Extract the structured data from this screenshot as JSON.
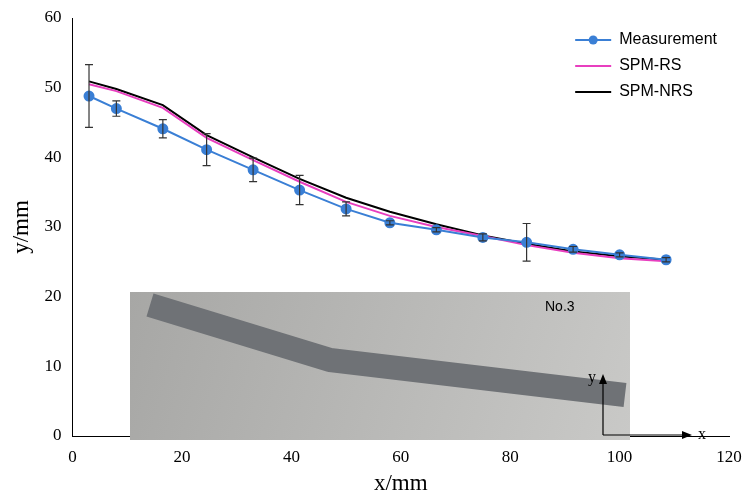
{
  "chart_data": {
    "type": "line",
    "x_label": "x/mm",
    "y_label": "y/mm",
    "xlim": [
      0,
      120
    ],
    "xticks": [
      0,
      20,
      40,
      60,
      80,
      100,
      120
    ],
    "ylim": [
      0,
      60
    ],
    "yticks": [
      0,
      10,
      20,
      30,
      40,
      50,
      60
    ],
    "grid": false,
    "legend": "upper right",
    "x": [
      3,
      8,
      16.5,
      24.5,
      33,
      41.5,
      50,
      58,
      66.5,
      75,
      83,
      91.5,
      100,
      108.5
    ],
    "series": [
      {
        "name": "Measurement",
        "color": "#3a7fd5",
        "marker": "circle",
        "line_style": "solid",
        "values": [
          48.8,
          47.0,
          44.1,
          41.1,
          38.2,
          35.3,
          32.6,
          30.6,
          29.6,
          28.5,
          27.8,
          26.8,
          26.0,
          25.3
        ],
        "errors": [
          4.5,
          1.1,
          1.3,
          2.3,
          1.7,
          2.1,
          1.0,
          0.3,
          0.3,
          0.5,
          2.7,
          0.4,
          0.3,
          0.3
        ]
      },
      {
        "name": "SPM-RS",
        "color": "#e83fbf",
        "marker": "none",
        "line_style": "solid",
        "values": [
          50.5,
          49.5,
          47.1,
          42.8,
          39.6,
          36.5,
          33.6,
          31.6,
          30.0,
          28.7,
          27.4,
          26.3,
          25.5,
          25.1
        ]
      },
      {
        "name": "SPM-NRS",
        "color": "#000000",
        "marker": "none",
        "line_style": "solid",
        "values": [
          50.9,
          49.8,
          47.5,
          43.2,
          40.0,
          36.9,
          34.2,
          32.2,
          30.4,
          28.8,
          27.6,
          26.5,
          25.8,
          25.3
        ]
      }
    ],
    "inset_labels": {
      "title": "No.3",
      "x_axis": "x",
      "y_axis": "y"
    }
  }
}
